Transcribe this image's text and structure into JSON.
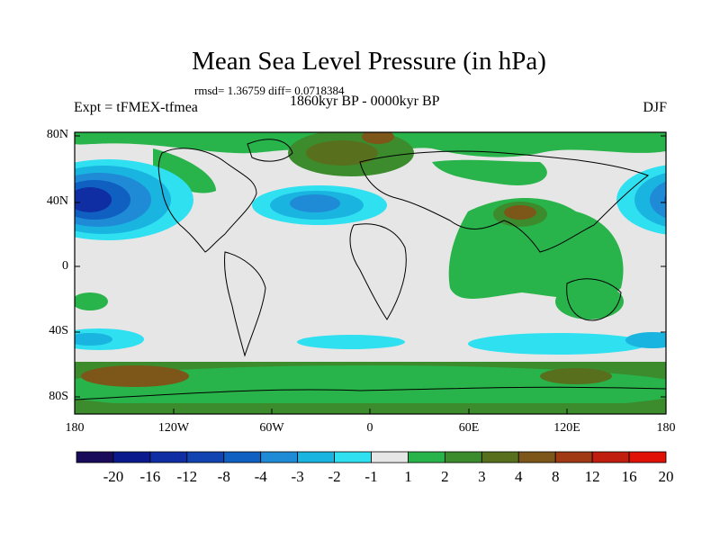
{
  "title": "Mean Sea Level Pressure (in hPa)",
  "stats": "rmsd= 1.36759 diff= 0.0718384",
  "left_label": "Expt = tFMEX-tfmea",
  "center_label": "1860kyr BP - 0000kyr BP",
  "right_label": "DJF",
  "lat_labels": [
    "80N",
    "40N",
    "0",
    "40S",
    "80S"
  ],
  "lon_labels": [
    "180",
    "120W",
    "60W",
    "0",
    "60E",
    "120E",
    "180"
  ],
  "colorbar": {
    "labels": [
      "-20",
      "-16",
      "-12",
      "-8",
      "-4",
      "-3",
      "-2",
      "-1",
      "1",
      "2",
      "3",
      "4",
      "8",
      "12",
      "16",
      "20"
    ],
    "colors": [
      "#1a0a5a",
      "#0a1a8c",
      "#0f2ea3",
      "#1144b0",
      "#1060c2",
      "#1f8ad6",
      "#19b4e0",
      "#2ee0f0",
      "#e6e6e6",
      "#28b44a",
      "#3c8c2e",
      "#58701e",
      "#7d5619",
      "#a03a14",
      "#c01e0e",
      "#e01208"
    ]
  }
}
